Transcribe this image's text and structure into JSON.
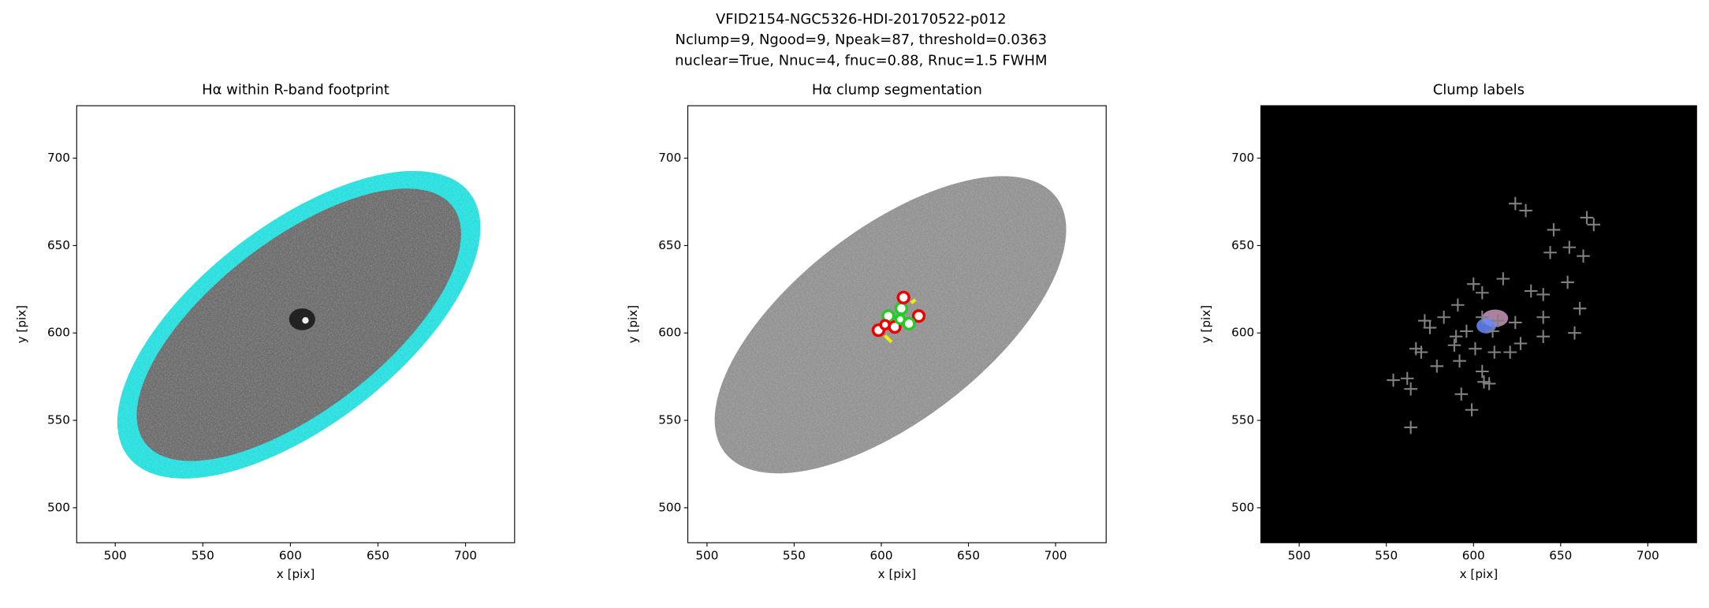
{
  "figure_title": [
    "VFID2154-NGC5326-HDI-20170522-p012",
    "Nclump=9, Ngood=9, Npeak=87, threshold=0.0363",
    "nuclear=True, Nnuc=4, fnuc=0.88, Rnuc=1.5 FWHM"
  ],
  "chart_data": [
    {
      "type": "image",
      "title": "Hα within R-band footprint",
      "x_label": "x [pix]",
      "y_label": "y [pix]",
      "xlim": [
        478,
        728
      ],
      "ylim": [
        480,
        730
      ],
      "xticks": [
        500,
        550,
        600,
        650,
        700
      ],
      "yticks": [
        500,
        550,
        600,
        650,
        700
      ]
    },
    {
      "type": "image",
      "title": "Hα clump segmentation",
      "x_label": "x [pix]",
      "y_label": "y [pix]",
      "xlim": [
        489,
        729
      ],
      "ylim": [
        480,
        730
      ],
      "xticks": [
        500,
        550,
        600,
        650,
        700
      ],
      "yticks": [
        500,
        550,
        600,
        650,
        700
      ]
    },
    {
      "type": "scatter",
      "title": "Clump labels",
      "x_label": "x [pix]",
      "y_label": "y [pix]",
      "xlim": [
        478,
        728
      ],
      "ylim": [
        480,
        730
      ],
      "xticks": [
        500,
        550,
        600,
        650,
        700
      ],
      "yticks": [
        500,
        550,
        600,
        650,
        700
      ],
      "series": [
        {
          "color": "#808080",
          "x": [
            624,
            630,
            646,
            665,
            669,
            655,
            644,
            663,
            654,
            633,
            640,
            661,
            617,
            600,
            605,
            591,
            583,
            572,
            575,
            605,
            614,
            624,
            640,
            658,
            640,
            611,
            596,
            589,
            601,
            612,
            621,
            627,
            567,
            570,
            579,
            592,
            605,
            606,
            609,
            593,
            599,
            554,
            562,
            564,
            564,
            590
          ],
          "y": [
            674,
            670,
            659,
            666,
            662,
            649,
            646,
            644,
            629,
            624,
            622,
            614,
            631,
            628,
            623,
            616,
            609,
            607,
            603,
            609,
            607,
            606,
            609,
            600,
            598,
            601,
            601,
            593,
            591,
            589,
            589,
            594,
            591,
            589,
            581,
            584,
            578,
            572,
            571,
            565,
            556,
            573,
            574,
            568,
            546,
            598
          ]
        }
      ]
    }
  ]
}
